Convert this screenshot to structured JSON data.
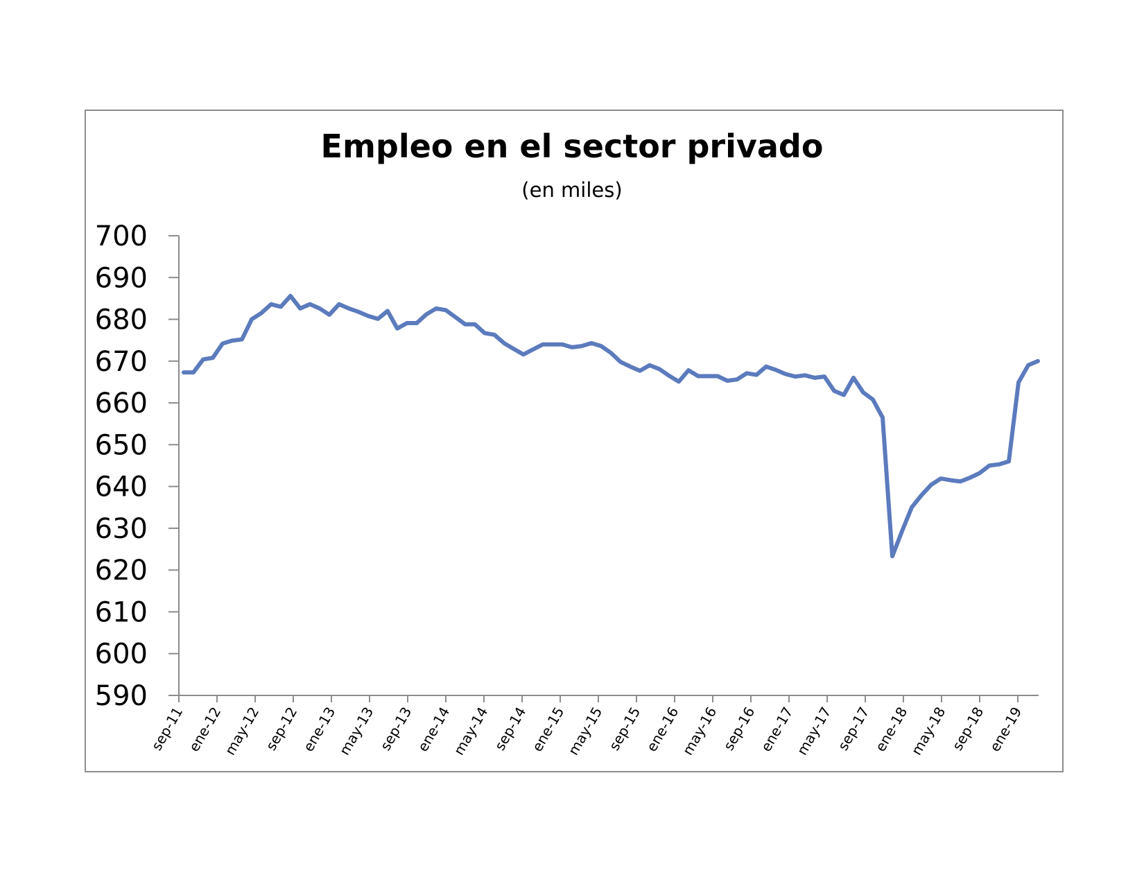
{
  "chart_data": {
    "type": "line",
    "title": "Empleo en el sector privado",
    "subtitle": "(en miles)",
    "xlabel": "",
    "ylabel": "",
    "ylim": [
      590,
      700
    ],
    "y_ticks": [
      590,
      600,
      610,
      620,
      630,
      640,
      650,
      660,
      670,
      680,
      690,
      700
    ],
    "x_tick_labels": [
      "sep-11",
      "ene-12",
      "may-12",
      "sep-12",
      "ene-13",
      "may-13",
      "sep-13",
      "ene-14",
      "may-14",
      "sep-14",
      "ene-15",
      "may-15",
      "sep-15",
      "ene-16",
      "may-16",
      "sep-16",
      "ene-17",
      "may-17",
      "sep-17",
      "ene-18",
      "may-18",
      "sep-18",
      "ene-19"
    ],
    "grid": false,
    "legend": "none",
    "line_color": "#5b7bbd",
    "series": [
      {
        "values": [
          667.3,
          667.3,
          670.4,
          670.8,
          674.2,
          674.9,
          675.2,
          680.0,
          681.5,
          683.6,
          683.0,
          685.6,
          682.6,
          683.6,
          682.6,
          681.1,
          683.6,
          682.6,
          681.8,
          680.8,
          680.1,
          682.0,
          677.8,
          679.1,
          679.1,
          681.2,
          682.6,
          682.2,
          680.5,
          678.8,
          678.8,
          676.7,
          676.3,
          674.3,
          672.9,
          671.6,
          672.8,
          674.0,
          674.0,
          674.0,
          673.3,
          673.6,
          674.3,
          673.6,
          672.0,
          669.8,
          668.7,
          667.7,
          669.0,
          668.1,
          666.5,
          665.1,
          667.8,
          666.4,
          666.4,
          666.4,
          665.3,
          665.6,
          667.1,
          666.7,
          668.7,
          667.9,
          666.9,
          666.3,
          666.6,
          666.0,
          666.3,
          662.9,
          661.9,
          666.0,
          662.5,
          660.8,
          656.5,
          623.3,
          629.3,
          635.0,
          637.9,
          640.4,
          641.9,
          641.5,
          641.2,
          642.1,
          643.2,
          645.0,
          645.3,
          646.0,
          664.9,
          669.0,
          670.0
        ]
      }
    ]
  }
}
